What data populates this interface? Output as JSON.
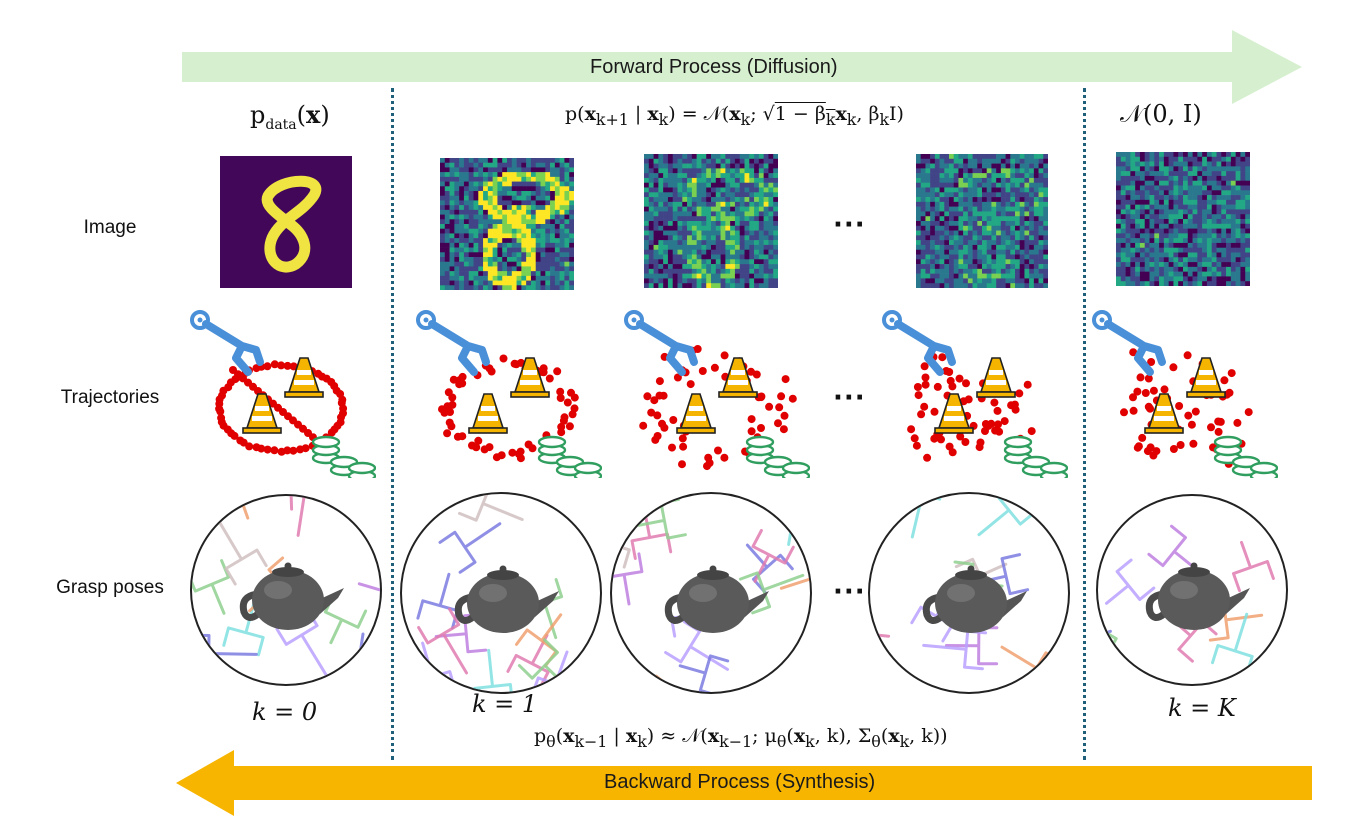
{
  "forward_arrow": {
    "label": "Forward Process (Diffusion)",
    "color": "#d6f0cf"
  },
  "backward_arrow": {
    "label": "Backward Process (Synthesis)",
    "color": "#f7b500"
  },
  "row_labels": {
    "image": "Image",
    "trajectories": "Trajectories",
    "grasp": "Grasp poses"
  },
  "column_headers": {
    "data": "p_data(x)",
    "forward": "p(x_{k+1} | x_k) = N(x_k; √(1 − β_k) x_k, β_k I)",
    "prior": "N(0, I)"
  },
  "step_labels": {
    "k0": "k = 0",
    "k1": "k = 1",
    "kK": "k = K"
  },
  "reverse_formula": "p_θ(x_{k−1} | x_k) ≈ N(x_{k−1}; μ_θ(x_k, k), Σ_θ(x_k, k))",
  "ellipsis": "···",
  "colors": {
    "divider": "#1f5f7a",
    "trajectory_dot": "#e00000",
    "robot": "#4a90d9",
    "cone": "#f5b400",
    "coins": "#2f9e5e"
  },
  "icons": [
    "robot-gripper-icon",
    "traffic-cone-icon",
    "coin-stack-icon",
    "teapot-icon"
  ]
}
